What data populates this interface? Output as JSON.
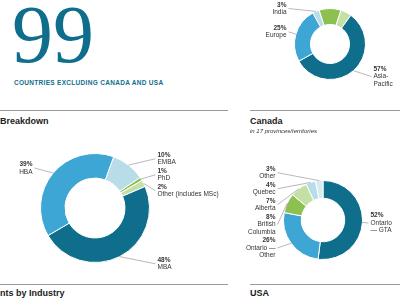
{
  "headline": {
    "value": 99,
    "caption": "COUNTRIES EXCLUDING CANADA AND USA"
  },
  "chart_data": [
    {
      "type": "doughnut",
      "categories": [
        null,
        null,
        "Asia-Pacific",
        "Europe",
        "India"
      ],
      "values": [
        10,
        5,
        57,
        25,
        3
      ],
      "value_labels": [
        null,
        null,
        "57%",
        "25%",
        "3%"
      ],
      "colors": [
        "#8cc152",
        "#c5e0a5",
        "#0f6e8c",
        "#3ea6d4",
        "#b8dde8"
      ],
      "data_labels": true
    },
    {
      "type": "doughnut",
      "title": "Breakdown",
      "categories": [
        "EMBA",
        "PhD",
        "Other (includes MSc)",
        "MBA",
        "HBA"
      ],
      "values": [
        10,
        1,
        2,
        48,
        39
      ],
      "value_labels": [
        "10%",
        "1%",
        "2%",
        "48%",
        "39%"
      ],
      "colors": [
        "#b8dde8",
        "#8cc152",
        "#c5e0a5",
        "#0f6e8c",
        "#3ea6d4"
      ],
      "data_labels": true
    },
    {
      "type": "doughnut",
      "title": "Canada",
      "subtitle": "in 17 provinces/territories",
      "categories": [
        "Ontario — GTA",
        "Ontario — Other",
        "British Columbia",
        "Alberta",
        "Quebec",
        "Other"
      ],
      "values": [
        52,
        26,
        8,
        7,
        4,
        3
      ],
      "value_labels": [
        "52%",
        "26%",
        "8%",
        "7%",
        "4%",
        "3%"
      ],
      "colors": [
        "#0f6e8c",
        "#3ea6d4",
        "#8cc152",
        "#c5e0a5",
        "#b8dde8",
        "#d6ecf3"
      ],
      "data_labels": true
    }
  ],
  "sections": [
    "nts by Industry",
    "USA"
  ]
}
